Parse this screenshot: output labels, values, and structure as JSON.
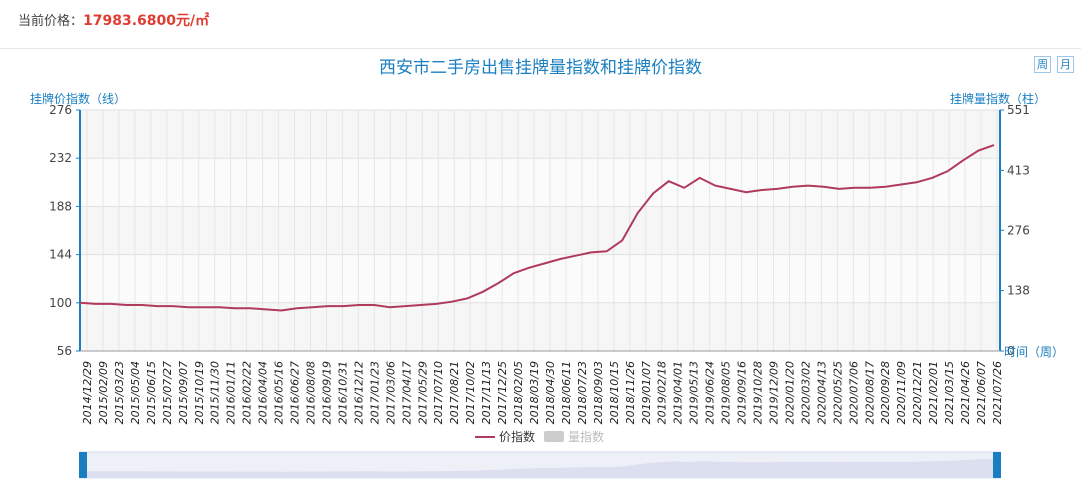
{
  "price": {
    "label": "当前价格：",
    "value": "17983.6800元/㎡"
  },
  "period_buttons": [
    "周",
    "月"
  ],
  "chart_data": {
    "type": "line",
    "title": "西安市二手房出售挂牌量指数和挂牌价指数",
    "ylabel_left": "挂牌价指数（线）",
    "ylabel_right": "挂牌量指数（柱）",
    "xlabel": "时间（周）",
    "ylim_left": [
      56,
      276
    ],
    "yticks_left": [
      56,
      100,
      144,
      188,
      232,
      276
    ],
    "ylim_right": [
      0,
      551
    ],
    "yticks_right": [
      0,
      138,
      276,
      413,
      551
    ],
    "grid": true,
    "legend_position": "bottom",
    "x_ticks": [
      "2014/12/29",
      "2015/02/09",
      "2015/03/23",
      "2015/05/04",
      "2015/06/15",
      "2015/07/27",
      "2015/09/07",
      "2015/10/19",
      "2015/11/30",
      "2016/01/11",
      "2016/02/22",
      "2016/04/04",
      "2016/05/16",
      "2016/06/27",
      "2016/08/08",
      "2016/09/19",
      "2016/10/31",
      "2016/12/12",
      "2017/01/23",
      "2017/03/06",
      "2017/04/17",
      "2017/05/29",
      "2017/07/10",
      "2017/08/21",
      "2017/10/02",
      "2017/11/13",
      "2017/12/25",
      "2018/02/05",
      "2018/03/19",
      "2018/04/30",
      "2018/06/11",
      "2018/07/23",
      "2018/09/03",
      "2018/10/15",
      "2018/11/26",
      "2019/01/07",
      "2019/02/18",
      "2019/04/01",
      "2019/05/13",
      "2019/06/24",
      "2019/08/05",
      "2019/09/16",
      "2019/10/28",
      "2019/12/09",
      "2020/01/20",
      "2020/03/02",
      "2020/04/13",
      "2020/05/25",
      "2020/07/06",
      "2020/08/17",
      "2020/09/28",
      "2020/11/09",
      "2020/12/21",
      "2021/02/01",
      "2021/03/15",
      "2021/04/26",
      "2021/06/07",
      "2021/07/26"
    ],
    "series": [
      {
        "name": "价指数",
        "color": "#b03a5b",
        "values": [
          100,
          99,
          99,
          98,
          98,
          97,
          97,
          96,
          96,
          96,
          95,
          95,
          94,
          93,
          95,
          96,
          97,
          97,
          98,
          98,
          96,
          97,
          98,
          99,
          101,
          104,
          110,
          118,
          127,
          132,
          136,
          140,
          143,
          146,
          147,
          157,
          182,
          200,
          211,
          205,
          214,
          207,
          204,
          201,
          203,
          204,
          206,
          207,
          206,
          204,
          205,
          205,
          206,
          208,
          210,
          214,
          220,
          230,
          239,
          244
        ]
      },
      {
        "name": "量指数",
        "color": "#cccccc",
        "values": []
      }
    ]
  }
}
